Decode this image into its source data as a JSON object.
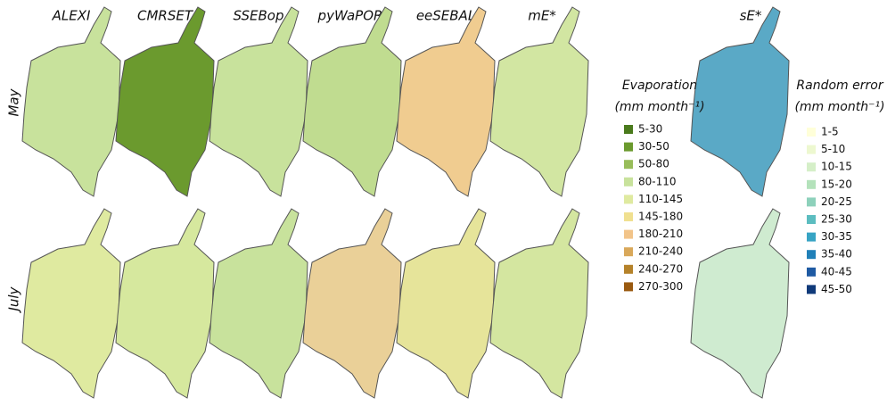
{
  "columns": [
    "ALEXI",
    "CMRSET",
    "SSEBop",
    "pyWaPOR",
    "eeSEBAL",
    "mE*",
    "sE*"
  ],
  "rows": [
    "May",
    "July"
  ],
  "legends": [
    {
      "title": "Evaporation",
      "unit": "(mm month⁻¹)",
      "items": [
        {
          "label": "5-30",
          "color": "#4a7a1c"
        },
        {
          "label": "30-50",
          "color": "#6b9a2e"
        },
        {
          "label": "50-80",
          "color": "#98bd5a"
        },
        {
          "label": "80-110",
          "color": "#c8e29c"
        },
        {
          "label": "110-145",
          "color": "#dfeaa0"
        },
        {
          "label": "145-180",
          "color": "#f0e090"
        },
        {
          "label": "180-210",
          "color": "#f2c489"
        },
        {
          "label": "210-240",
          "color": "#d9a85a"
        },
        {
          "label": "240-270",
          "color": "#b5822a"
        },
        {
          "label": "270-300",
          "color": "#9a5a10"
        }
      ]
    },
    {
      "title": "Random error",
      "unit": "(mm month⁻¹)",
      "items": [
        {
          "label": "1-5",
          "color": "#ffffd9"
        },
        {
          "label": "5-10",
          "color": "#edf8d0"
        },
        {
          "label": "10-15",
          "color": "#d5efc8"
        },
        {
          "label": "15-20",
          "color": "#b4e2bb"
        },
        {
          "label": "20-25",
          "color": "#8dd1bb"
        },
        {
          "label": "25-30",
          "color": "#5cbdc0"
        },
        {
          "label": "30-35",
          "color": "#37a4c4"
        },
        {
          "label": "35-40",
          "color": "#2080b8"
        },
        {
          "label": "40-45",
          "color": "#1f5aa3"
        },
        {
          "label": "45-50",
          "color": "#103a7a"
        }
      ]
    }
  ]
}
